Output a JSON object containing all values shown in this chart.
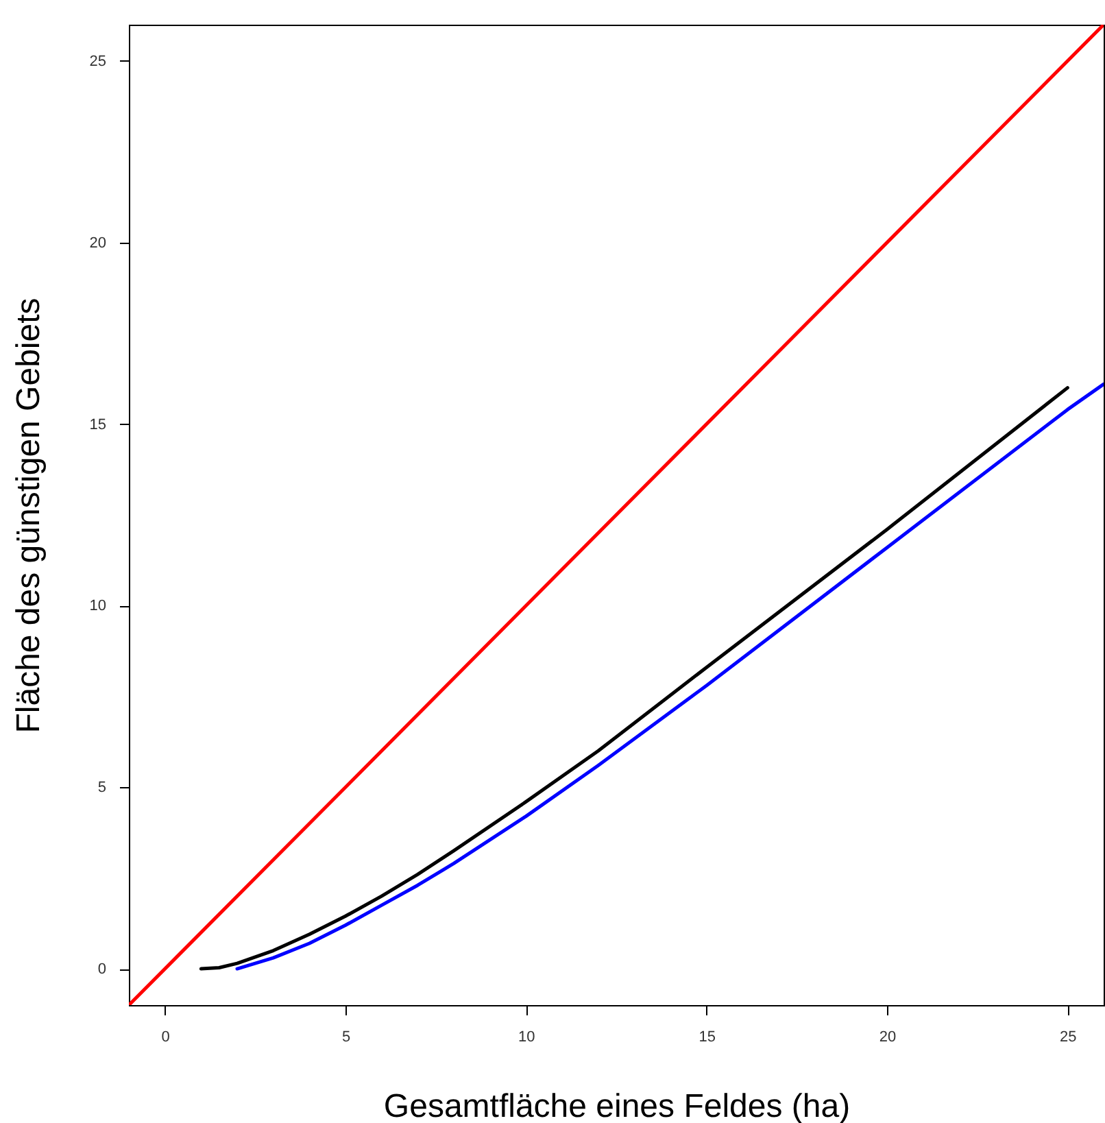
{
  "chart_data": {
    "type": "line",
    "xlabel": "Gesamtfläche eines Feldes (ha)",
    "ylabel": "Fläche des günstigen Gebiets",
    "xlim": [
      -1,
      26
    ],
    "ylim": [
      -1,
      26
    ],
    "xticks": [
      0,
      5,
      10,
      15,
      20,
      25
    ],
    "yticks": [
      0,
      5,
      10,
      15,
      20,
      25
    ],
    "grid": false,
    "marker": "none",
    "line_style": "solid",
    "series": [
      {
        "color": "#ff0000",
        "x": [
          -1,
          26
        ],
        "values": [
          -1,
          26
        ]
      },
      {
        "color": "#000000",
        "x": [
          1,
          1.5,
          2,
          3,
          4,
          5,
          6,
          7,
          8,
          10,
          12,
          15,
          20,
          25
        ],
        "values": [
          0,
          0.03,
          0.15,
          0.5,
          0.95,
          1.45,
          2.0,
          2.6,
          3.25,
          4.6,
          6.0,
          8.3,
          12.1,
          16.0
        ]
      },
      {
        "color": "#0000ff",
        "x": [
          2,
          3,
          4,
          5,
          6,
          7,
          8,
          10,
          12,
          15,
          20,
          25,
          26
        ],
        "values": [
          0,
          0.3,
          0.7,
          1.2,
          1.75,
          2.3,
          2.9,
          4.2,
          5.6,
          7.8,
          11.6,
          15.4,
          16.1
        ]
      }
    ]
  }
}
